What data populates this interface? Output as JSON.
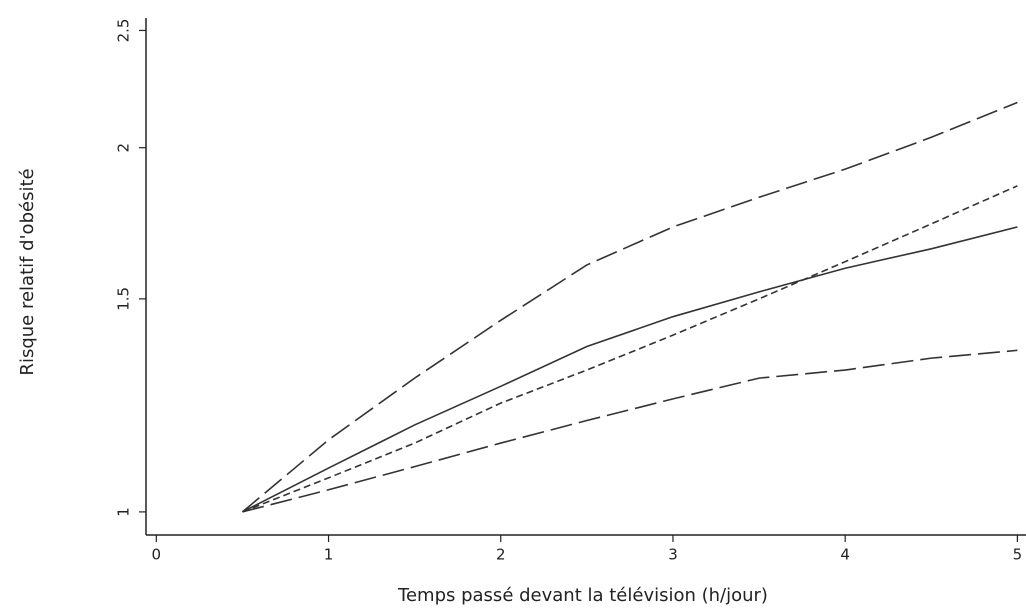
{
  "chart_data": {
    "type": "line",
    "x_label": "Temps passé devant la télévision (h/jour)",
    "y_label": "Risque relatif d'obésité",
    "x": [
      0.5,
      1,
      1.5,
      2,
      2.5,
      3,
      3.5,
      4,
      4.5,
      5
    ],
    "series": [
      {
        "color": "#333333",
        "dash": "22 7",
        "values": [
          1,
          1.147,
          1.29,
          1.44,
          1.6,
          1.72,
          1.82,
          1.92,
          2.04,
          2.18
        ]
      },
      {
        "color": "#333333",
        "dash": "none",
        "values": [
          1,
          1.087,
          1.18,
          1.27,
          1.37,
          1.45,
          1.52,
          1.59,
          1.65,
          1.72
        ]
      },
      {
        "color": "#333333",
        "dash": "7 4",
        "values": [
          1,
          1.067,
          1.14,
          1.23,
          1.31,
          1.4,
          1.5,
          1.61,
          1.73,
          1.86
        ]
      },
      {
        "color": "#333333",
        "dash": "22 7",
        "values": [
          1,
          1.043,
          1.09,
          1.14,
          1.19,
          1.24,
          1.29,
          1.31,
          1.34,
          1.36
        ]
      }
    ],
    "xlim": [
      -0.06,
      5.05
    ],
    "xticks": [
      0,
      1,
      2,
      3,
      4,
      5
    ],
    "ylim": [
      0.957,
      2.56
    ],
    "yticks": [
      1,
      1.5,
      2,
      2.5
    ],
    "ylog": true,
    "grid": false
  }
}
